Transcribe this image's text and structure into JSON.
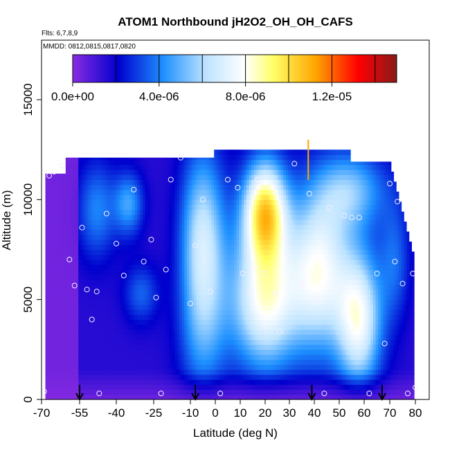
{
  "chart_data": {
    "type": "heatmap",
    "title": "ATOM1 Northbound jH2O2_OH_OH_CAFS",
    "subtitle_flights": "Flts: 6,7,8,9",
    "subtitle_dates": "MMDD: 0812,0815,0817,0820",
    "xlabel": "Latitude (deg N)",
    "ylabel": "Altitude (m)",
    "xlim": [
      -70,
      85
    ],
    "ylim": [
      0,
      17500
    ],
    "x_ticks": [
      -70,
      -55,
      -40,
      -25,
      -10,
      0,
      10,
      20,
      30,
      40,
      50,
      60,
      70,
      80
    ],
    "x_tick_labels": [
      "-70",
      "-55",
      "-40",
      "-25",
      "-10",
      "0",
      "10",
      "20",
      "30",
      "40",
      "50",
      "60",
      "70",
      "80"
    ],
    "y_ticks": [
      0,
      5000,
      10000,
      15000
    ],
    "y_tick_labels": [
      "0",
      "5000",
      "10000",
      "15000"
    ],
    "colorbar": {
      "range": [
        0,
        1.5e-05
      ],
      "tick_values": [
        0,
        4e-06,
        8e-06,
        1.2e-05
      ],
      "tick_labels": [
        "0.0e+00",
        "4.0e-06",
        "8.0e-06",
        "1.2e-05"
      ],
      "divisions": [
        0,
        2e-06,
        4e-06,
        6e-06,
        8e-06,
        1e-05,
        1.2e-05,
        1.4e-05
      ],
      "colors": [
        "#8a2be2",
        "#0000cd",
        "#1e90ff",
        "#ffffff",
        "#ffff66",
        "#ffa500",
        "#ff0000",
        "#8b1a1a"
      ],
      "placement": "top"
    },
    "profile_arrows_lat": [
      -55,
      -8,
      39,
      67
    ],
    "observations": [
      {
        "lat": -69,
        "alt": 400
      },
      {
        "lat": -67,
        "alt": 11200
      },
      {
        "lat": -65,
        "alt": 11400
      },
      {
        "lat": -62,
        "alt": 11700
      },
      {
        "lat": -59,
        "alt": 7000
      },
      {
        "lat": -57,
        "alt": 5700
      },
      {
        "lat": -54,
        "alt": 8600
      },
      {
        "lat": -52,
        "alt": 5500
      },
      {
        "lat": -50,
        "alt": 4000
      },
      {
        "lat": -48,
        "alt": 5400
      },
      {
        "lat": -47,
        "alt": 300
      },
      {
        "lat": -44,
        "alt": 9300
      },
      {
        "lat": -40,
        "alt": 7800
      },
      {
        "lat": -37,
        "alt": 6200
      },
      {
        "lat": -33,
        "alt": 10500
      },
      {
        "lat": -29,
        "alt": 6900
      },
      {
        "lat": -26,
        "alt": 8000
      },
      {
        "lat": -24,
        "alt": 5100
      },
      {
        "lat": -22,
        "alt": 300
      },
      {
        "lat": -20,
        "alt": 6500
      },
      {
        "lat": -18,
        "alt": 11000
      },
      {
        "lat": -14,
        "alt": 12100
      },
      {
        "lat": -10,
        "alt": 4800
      },
      {
        "lat": -8,
        "alt": 7700
      },
      {
        "lat": -5,
        "alt": 10000
      },
      {
        "lat": -2,
        "alt": 5400
      },
      {
        "lat": 2,
        "alt": 300
      },
      {
        "lat": 5,
        "alt": 11000
      },
      {
        "lat": 9,
        "alt": 10600
      },
      {
        "lat": 11,
        "alt": 6300
      },
      {
        "lat": 14,
        "alt": 5400
      },
      {
        "lat": 17,
        "alt": 11000
      },
      {
        "lat": 20,
        "alt": 6300
      },
      {
        "lat": 24,
        "alt": 5300
      },
      {
        "lat": 26,
        "alt": 3400
      },
      {
        "lat": 28,
        "alt": 8100
      },
      {
        "lat": 32,
        "alt": 11800
      },
      {
        "lat": 35,
        "alt": 5800
      },
      {
        "lat": 38,
        "alt": 10300
      },
      {
        "lat": 41,
        "alt": 5200
      },
      {
        "lat": 44,
        "alt": 300
      },
      {
        "lat": 46,
        "alt": 9600
      },
      {
        "lat": 49,
        "alt": 5800
      },
      {
        "lat": 52,
        "alt": 9200
      },
      {
        "lat": 55,
        "alt": 9100
      },
      {
        "lat": 58,
        "alt": 9100
      },
      {
        "lat": 62,
        "alt": 300
      },
      {
        "lat": 65,
        "alt": 6300
      },
      {
        "lat": 68,
        "alt": 2800
      },
      {
        "lat": 70,
        "alt": 10800
      },
      {
        "lat": 72,
        "alt": 6900
      },
      {
        "lat": 73,
        "alt": 9900
      },
      {
        "lat": 75,
        "alt": 5800
      },
      {
        "lat": 77,
        "alt": 300
      },
      {
        "lat": 79,
        "alt": 6300
      },
      {
        "lat": 80,
        "alt": 600
      }
    ]
  }
}
